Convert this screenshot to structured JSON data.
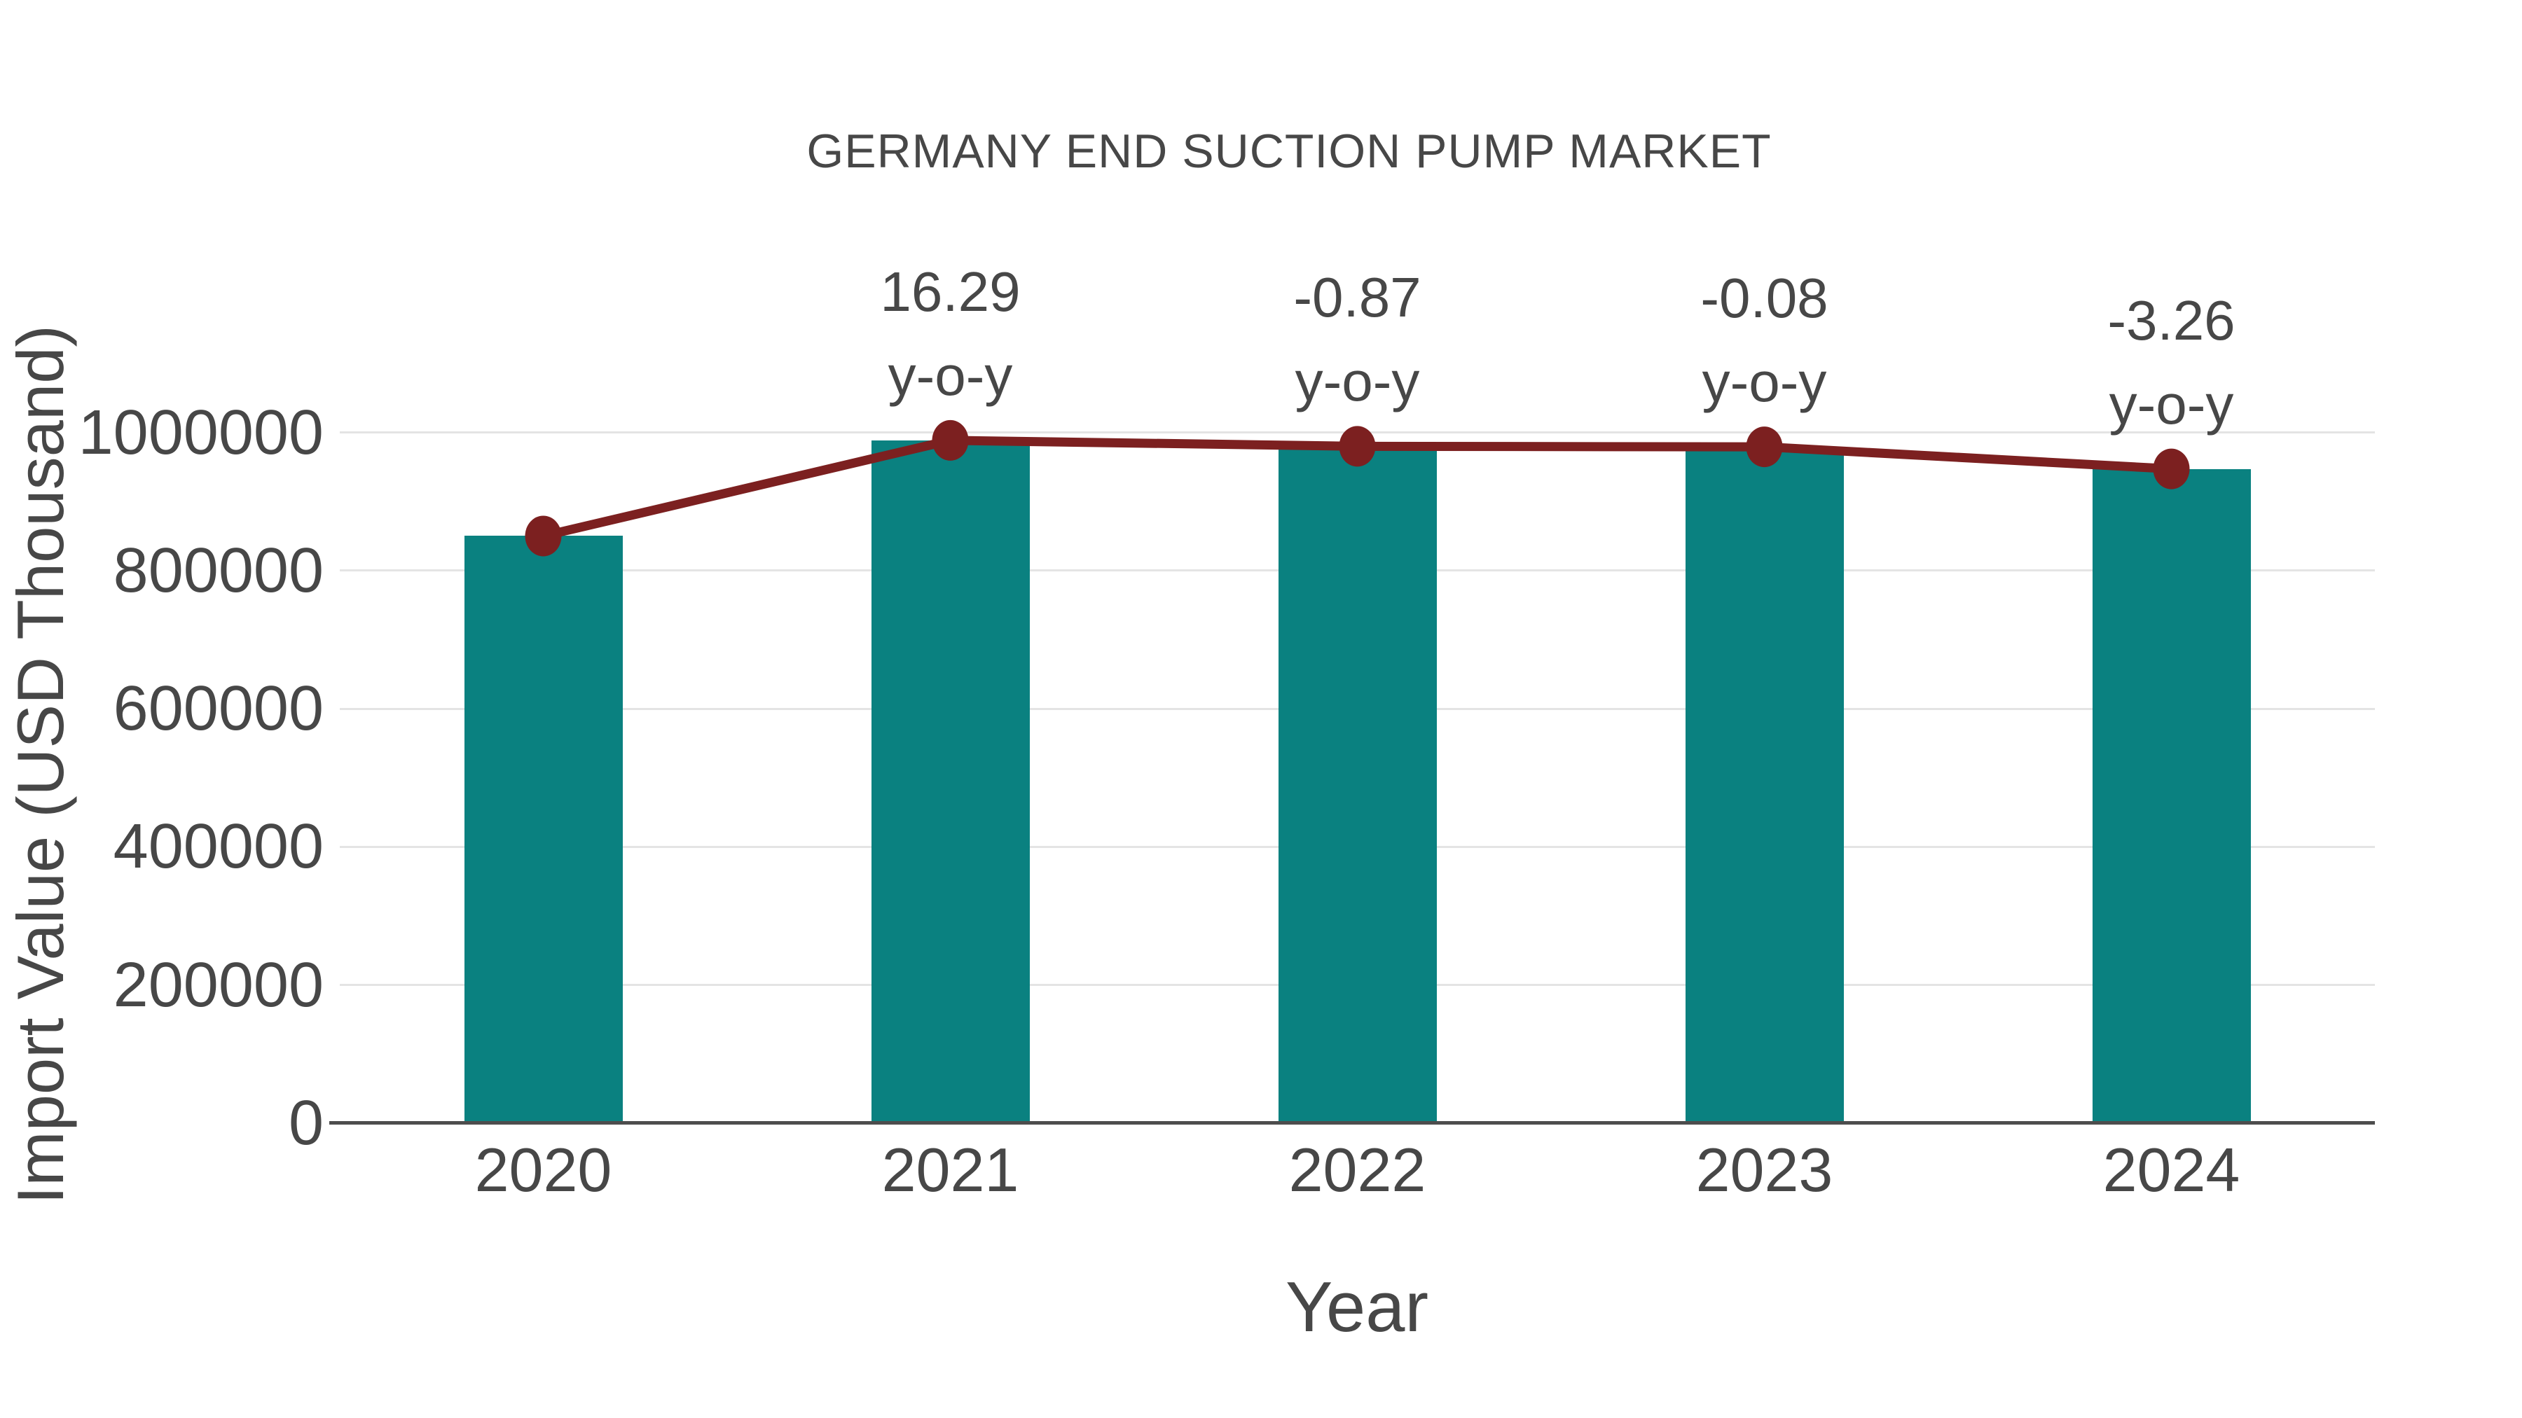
{
  "title": "GERMANY END SUCTION PUMP MARKET",
  "y_axis": {
    "title": "Import Value (USD Thousand)",
    "ticks": [
      0,
      200000,
      400000,
      600000,
      800000,
      1000000
    ]
  },
  "x_axis": {
    "title": "Year"
  },
  "colors": {
    "bar": "#0a8180",
    "line": "#7c2020",
    "marker": "#7c2020",
    "grid": "#e4e4e4",
    "axis": "#4d4d4d",
    "text": "#474747"
  },
  "chart_data": {
    "type": "bar",
    "title": "GERMANY END SUCTION PUMP MARKET",
    "xlabel": "Year",
    "ylabel": "Import Value (USD Thousand)",
    "categories": [
      "2020",
      "2021",
      "2022",
      "2023",
      "2024"
    ],
    "series": [
      {
        "name": "Import Value (USD Thousand)",
        "type": "bar",
        "values": [
          850000,
          988465,
          979866,
          979082,
          947164
        ]
      },
      {
        "name": "Import Value trend",
        "type": "line",
        "values": [
          850000,
          988465,
          979866,
          979082,
          947164
        ]
      }
    ],
    "annotations": [
      {
        "category": "2021",
        "lines": [
          "16.29",
          "y-o-y"
        ]
      },
      {
        "category": "2022",
        "lines": [
          "-0.87",
          "y-o-y"
        ]
      },
      {
        "category": "2023",
        "lines": [
          "-0.08",
          "y-o-y"
        ]
      },
      {
        "category": "2024",
        "lines": [
          "-3.26",
          "y-o-y"
        ]
      }
    ],
    "ylim": [
      0,
      1000000
    ],
    "grid": true,
    "legend": false
  }
}
